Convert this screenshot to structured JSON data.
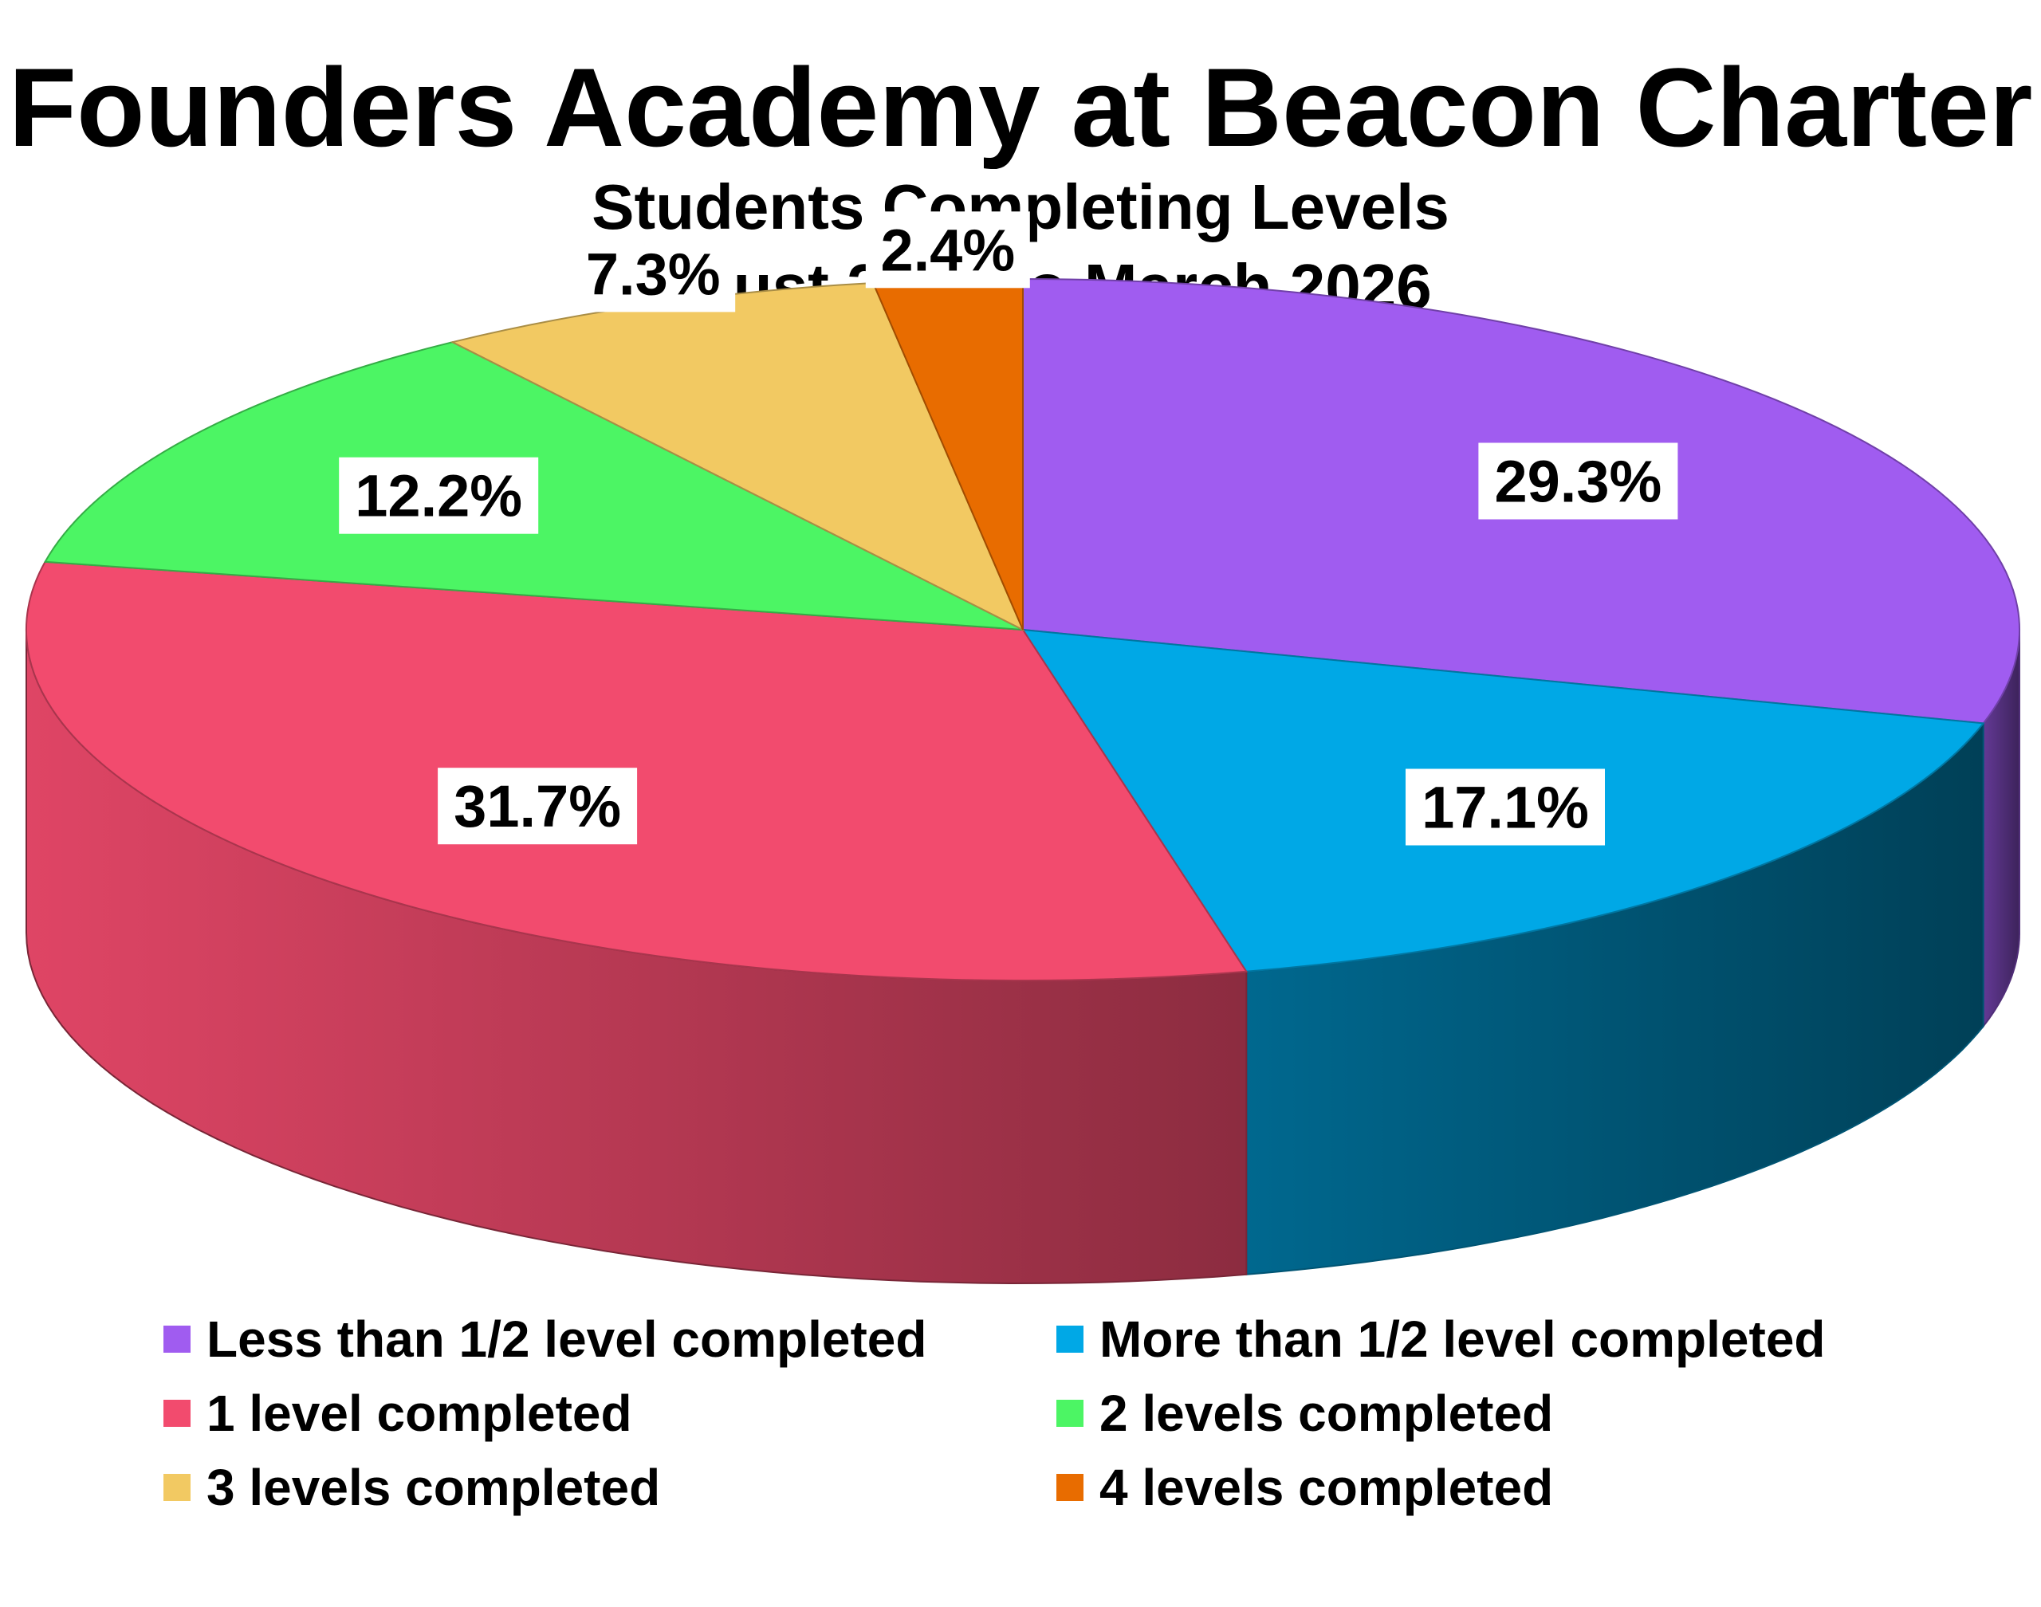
{
  "chart_data": {
    "type": "pie",
    "title": "Founders Academy at Beacon Charter",
    "subtitle_lines": [
      "Students Completing Levels",
      "August 2025 to March 2026"
    ],
    "legend_position": "bottom",
    "three_d": true,
    "slices": [
      {
        "name": "Less than 1/2 level completed",
        "value": 29.3,
        "label": "29.3%",
        "color": "#a05cf0"
      },
      {
        "name": "More than 1/2 level completed",
        "value": 17.1,
        "label": "17.1%",
        "color": "#00a8e6"
      },
      {
        "name": "1 level completed",
        "value": 31.7,
        "label": "31.7%",
        "color": "#f24b6e"
      },
      {
        "name": "2 levels completed",
        "value": 12.2,
        "label": "12.2%",
        "color": "#4cf564"
      },
      {
        "name": "3 levels completed",
        "value": 7.3,
        "label": "7.3%",
        "color": "#f2c962"
      },
      {
        "name": "4 levels completed",
        "value": 2.4,
        "label": "2.4%",
        "color": "#e86c00"
      }
    ]
  }
}
